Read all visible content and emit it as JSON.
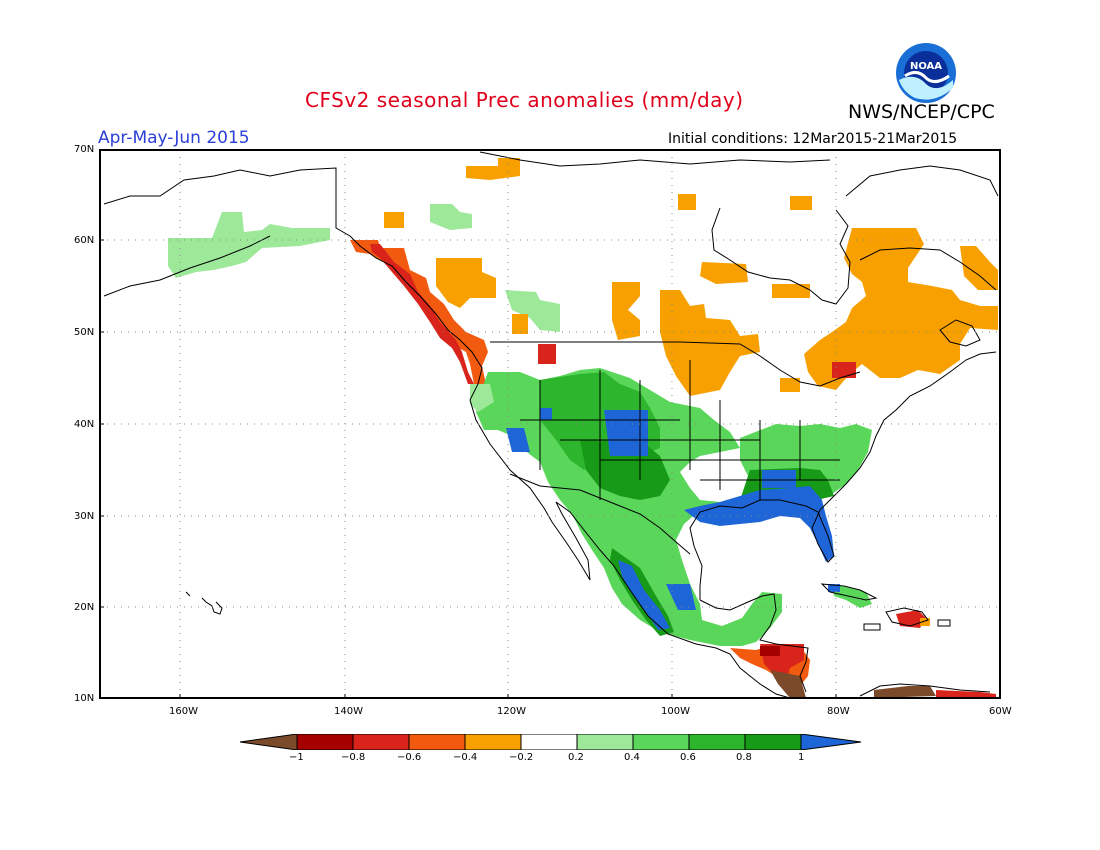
{
  "header": {
    "title": "CFSv2 seasonal Prec anomalies (mm/day)",
    "agency": "NWS/NCEP/CPC",
    "season": "Apr-May-Jun 2015",
    "initial_conditions": "Initial conditions: 12Mar2015-21Mar2015",
    "logo_text": "NOAA"
  },
  "map": {
    "lat_labels": [
      "70N",
      "60N",
      "50N",
      "40N",
      "30N",
      "20N",
      "10N"
    ],
    "lon_labels": [
      "160W",
      "140W",
      "120W",
      "100W",
      "80W",
      "60W"
    ]
  },
  "colorbar": {
    "labels": [
      "−1",
      "−0.8",
      "−0.6",
      "−0.4",
      "−0.2",
      "0.2",
      "0.4",
      "0.6",
      "0.8",
      "1"
    ],
    "colors": [
      "#7b4a2b",
      "#a50000",
      "#d8241a",
      "#f25a10",
      "#f8a000",
      "#ffffff",
      "#9ee89a",
      "#5ad65a",
      "#2eb52e",
      "#179a17",
      "#1e66d8"
    ]
  }
}
